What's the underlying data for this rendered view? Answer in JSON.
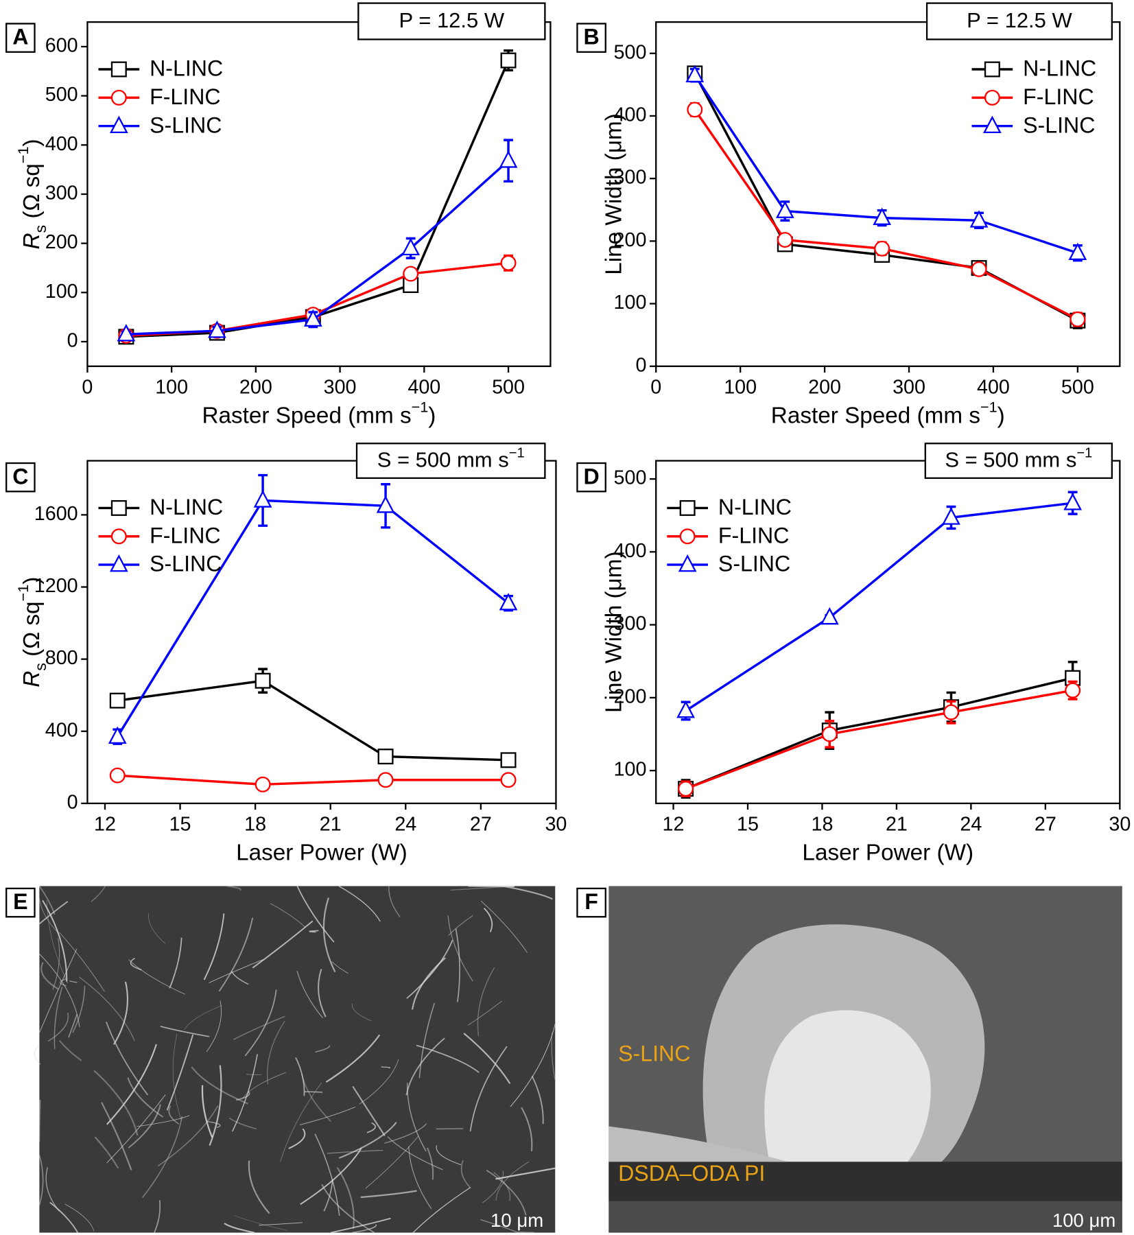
{
  "chart_data": [
    {
      "type": "line",
      "panel_label": "A",
      "annotation": [
        "P = 12.5 W"
      ],
      "x_label": [
        "Raster Speed (mm s",
        {
          "sup": "−1"
        },
        ")"
      ],
      "y_label": [
        {
          "italic": "R"
        },
        {
          "sub": "s"
        },
        " (Ω sq",
        {
          "sup": "−1"
        },
        ")"
      ],
      "x": [
        46,
        154,
        268,
        384,
        500
      ],
      "xlim": [
        0,
        550
      ],
      "xticks": [
        0,
        100,
        200,
        300,
        400,
        500
      ],
      "ylim": [
        -50,
        650
      ],
      "yticks": [
        0,
        100,
        200,
        300,
        400,
        500,
        600
      ],
      "legend": "upper left",
      "series": [
        {
          "name": "N-LINC",
          "color": "#000000",
          "marker": "square",
          "values": [
            10,
            18,
            50,
            115,
            572
          ],
          "errors": [
            3,
            3,
            5,
            8,
            20
          ]
        },
        {
          "name": "F-LINC",
          "color": "#ff0000",
          "marker": "circle",
          "values": [
            12,
            22,
            55,
            138,
            160
          ],
          "errors": [
            3,
            3,
            5,
            10,
            15
          ]
        },
        {
          "name": "S-LINC",
          "color": "#0000ff",
          "marker": "triangle",
          "values": [
            15,
            22,
            45,
            190,
            368
          ],
          "errors": [
            5,
            8,
            15,
            20,
            42
          ]
        }
      ]
    },
    {
      "type": "line",
      "panel_label": "B",
      "annotation": [
        "P = 12.5 W"
      ],
      "x_label": [
        "Raster Speed (mm s",
        {
          "sup": "−1"
        },
        ")"
      ],
      "y_label": [
        "Line Width (μm)"
      ],
      "x": [
        46,
        153,
        268,
        383,
        500
      ],
      "xlim": [
        0,
        550
      ],
      "xticks": [
        0,
        100,
        200,
        300,
        400,
        500
      ],
      "ylim": [
        0,
        550
      ],
      "yticks": [
        0,
        100,
        200,
        300,
        400,
        500
      ],
      "legend": "upper right",
      "series": [
        {
          "name": "N-LINC",
          "color": "#000000",
          "marker": "square",
          "values": [
            468,
            195,
            178,
            157,
            73
          ],
          "errors": [
            8,
            8,
            8,
            8,
            12
          ]
        },
        {
          "name": "F-LINC",
          "color": "#ff0000",
          "marker": "circle",
          "values": [
            410,
            202,
            188,
            155,
            75
          ],
          "errors": [
            10,
            8,
            10,
            8,
            10
          ]
        },
        {
          "name": "S-LINC",
          "color": "#0000ff",
          "marker": "triangle",
          "values": [
            465,
            248,
            237,
            233,
            181
          ],
          "errors": [
            10,
            15,
            12,
            12,
            12
          ]
        }
      ]
    },
    {
      "type": "line",
      "panel_label": "C",
      "annotation": [
        "S = 500 mm s",
        {
          "sup": "−1"
        }
      ],
      "x_label": [
        "Laser Power (W)"
      ],
      "y_label": [
        {
          "italic": "R"
        },
        {
          "sub": "s"
        },
        " (Ω sq",
        {
          "sup": "−1"
        },
        ")"
      ],
      "x": [
        12.5,
        18.3,
        23.2,
        28.1
      ],
      "xlim": [
        11.3,
        30
      ],
      "xticks": [
        12,
        15,
        18,
        21,
        24,
        27,
        30
      ],
      "ylim": [
        0,
        1900
      ],
      "yticks": [
        0,
        400,
        800,
        1200,
        1600
      ],
      "legend": "upper left",
      "series": [
        {
          "name": "N-LINC",
          "color": "#000000",
          "marker": "square",
          "values": [
            570,
            680,
            260,
            240
          ],
          "errors": [
            20,
            65,
            20,
            20
          ]
        },
        {
          "name": "F-LINC",
          "color": "#ff0000",
          "marker": "circle",
          "values": [
            155,
            105,
            130,
            130
          ],
          "errors": [
            20,
            20,
            20,
            20
          ]
        },
        {
          "name": "S-LINC",
          "color": "#0000ff",
          "marker": "triangle",
          "values": [
            370,
            1680,
            1650,
            1110
          ],
          "errors": [
            40,
            140,
            120,
            40
          ]
        }
      ]
    },
    {
      "type": "line",
      "panel_label": "D",
      "annotation": [
        "S = 500 mm s",
        {
          "sup": "−1"
        }
      ],
      "x_label": [
        "Laser Power (W)"
      ],
      "y_label": [
        "Line Width (μm)"
      ],
      "x": [
        12.5,
        18.3,
        23.2,
        28.1
      ],
      "xlim": [
        11.3,
        30
      ],
      "xticks": [
        12,
        15,
        18,
        21,
        24,
        27,
        30
      ],
      "ylim": [
        55,
        525
      ],
      "yticks": [
        100,
        200,
        300,
        400,
        500
      ],
      "legend": "upper left",
      "series": [
        {
          "name": "N-LINC",
          "color": "#000000",
          "marker": "square",
          "values": [
            75,
            155,
            187,
            227
          ],
          "errors": [
            12,
            25,
            20,
            22
          ]
        },
        {
          "name": "F-LINC",
          "color": "#ff0000",
          "marker": "circle",
          "values": [
            75,
            150,
            180,
            210
          ],
          "errors": [
            10,
            18,
            15,
            12
          ]
        },
        {
          "name": "S-LINC",
          "color": "#0000ff",
          "marker": "triangle",
          "values": [
            182,
            310,
            447,
            467
          ],
          "errors": [
            12,
            3,
            15,
            15
          ]
        }
      ]
    }
  ],
  "images": [
    {
      "panel_label": "E",
      "scale_bar": "10 μm"
    },
    {
      "panel_label": "F",
      "labels": [
        "S-LINC",
        "DSDA–ODA PI"
      ],
      "label_color": "#e8a317",
      "scale_bar": "100 μm"
    }
  ]
}
